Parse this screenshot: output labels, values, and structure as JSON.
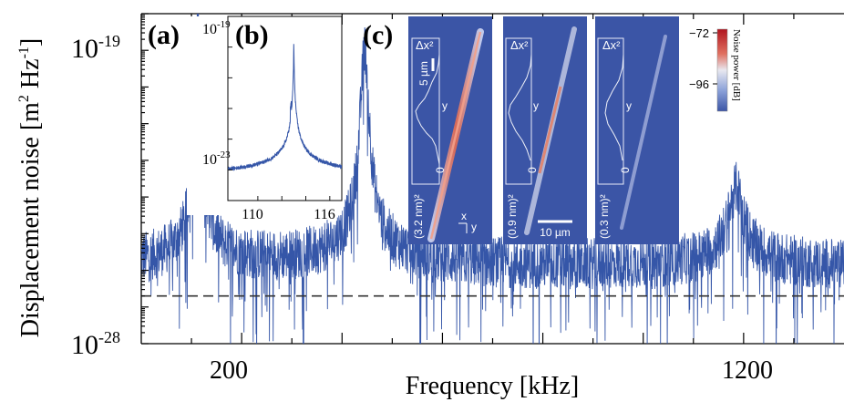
{
  "chart_data": [
    {
      "panel": "(a)",
      "type": "line",
      "xlabel": "Frequency [kHz]",
      "ylabel_base": "Displacement noise [m",
      "ylabel_sup1": "2",
      "ylabel_mid": " Hz",
      "ylabel_sup2": "-1",
      "ylabel_end": "]",
      "xlim": [
        0,
        1400
      ],
      "x_ticks": [
        200,
        1200
      ],
      "y_scale": "log",
      "ylim": [
        1e-28,
        1e-19
      ],
      "y_ticks": [
        {
          "base": "10",
          "exp": "-19",
          "value": 1e-19
        },
        {
          "base": "10",
          "exp": "-28",
          "value": 1e-28
        }
      ],
      "noise_floor": 2e-27,
      "noise_floor_style": "dashed",
      "color": "#3556a8",
      "peaks": [
        {
          "x": 113,
          "y": 1e-19
        },
        {
          "x": 445,
          "y": 2e-20
        },
        {
          "x": 1185,
          "y": 3e-24
        }
      ]
    },
    {
      "panel": "(b)",
      "type": "line",
      "x_scale_note": "kHz",
      "x_ticks": [
        "110",
        "116"
      ],
      "xlim": [
        107.5,
        117
      ],
      "y_scale": "log",
      "ylim": [
        1e-25,
        1e-19
      ],
      "y_ticks": [
        {
          "base": "10",
          "exp": "-19"
        },
        {
          "base": "10",
          "exp": "-23"
        }
      ],
      "peak_x": 113,
      "color": "#3556a8"
    },
    {
      "panel": "(c)",
      "type": "heatmap",
      "colorbar": {
        "label": "Noise power [dB]",
        "max": "−72",
        "min": "−96"
      },
      "maps": [
        {
          "profile_label": "Δx²",
          "scale_value": "(3.2 nm)²",
          "zero": "0",
          "axis": "y",
          "bar_label": "5 µm"
        },
        {
          "profile_label": "Δx²",
          "scale_value": "(0.9 nm)²",
          "zero": "0",
          "axis": "y",
          "bar_label": "10 µm"
        },
        {
          "profile_label": "Δx²",
          "scale_value": "(0.3 nm)²",
          "zero": "0",
          "axis": "y"
        }
      ],
      "axes_glyph": {
        "x": "x",
        "y": "y"
      }
    }
  ]
}
